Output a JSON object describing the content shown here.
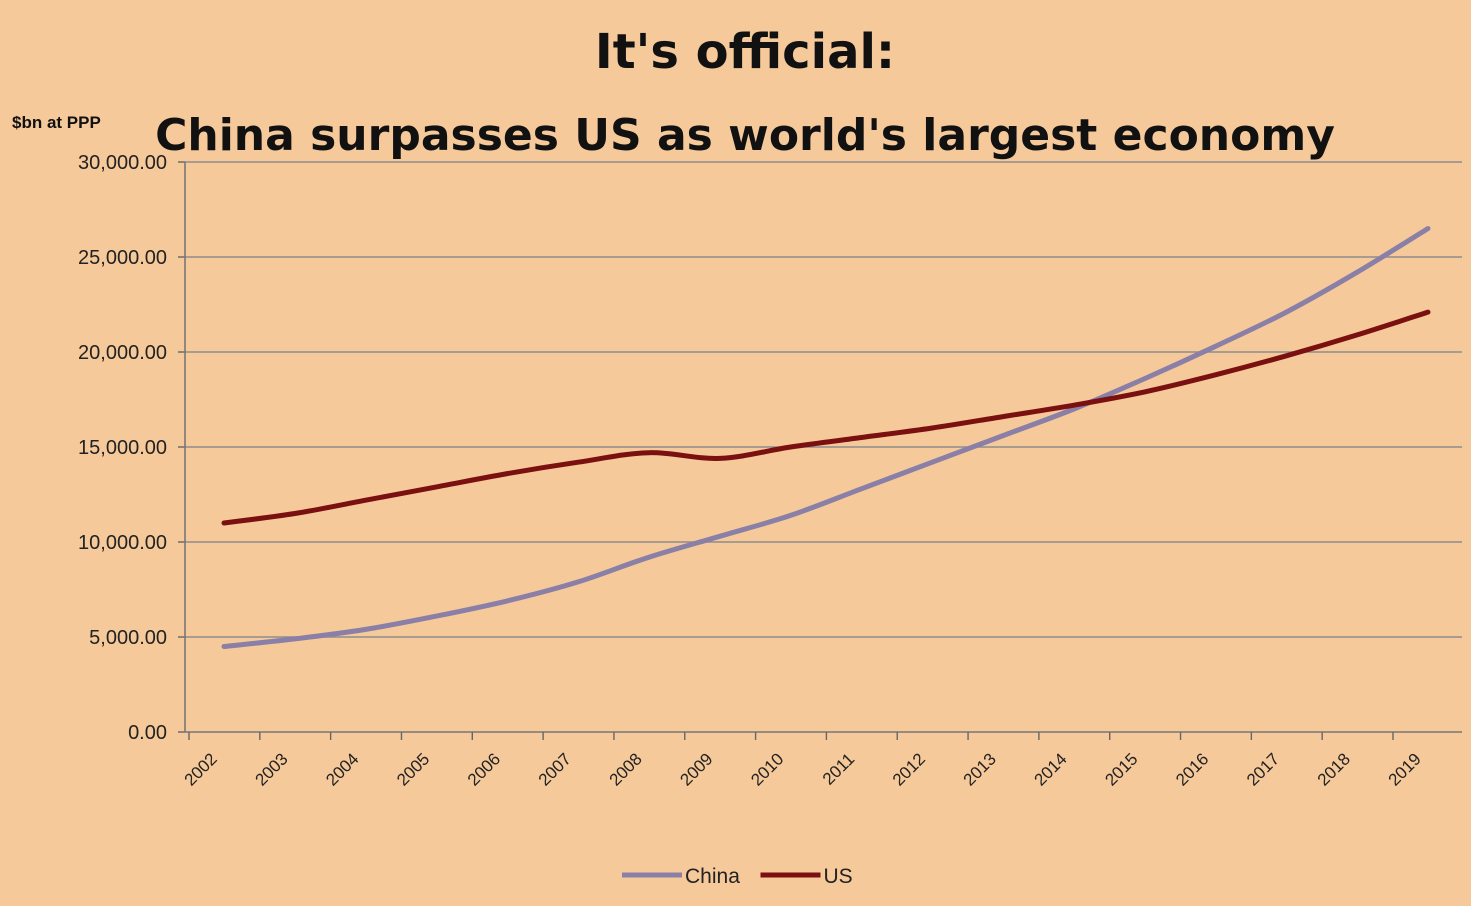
{
  "chart_data": {
    "type": "line",
    "title": "It's official:",
    "subtitle": "China surpasses US as world's largest economy",
    "ylabel": "$bn at PPP",
    "xlabel": "",
    "ylim": [
      0,
      30000
    ],
    "yticks": [
      "0.00",
      "5,000.00",
      "10,000.00",
      "15,000.00",
      "20,000.00",
      "25,000.00",
      "30,000.00"
    ],
    "x": [
      "2002",
      "2003",
      "2004",
      "2005",
      "2006",
      "2007",
      "2008",
      "2009",
      "2010",
      "2011",
      "2012",
      "2013",
      "2014",
      "2015",
      "2016",
      "2017",
      "2018",
      "2019"
    ],
    "series": [
      {
        "name": "China",
        "color": "#8a7fa6",
        "values": [
          4500,
          4900,
          5400,
          6100,
          6900,
          7900,
          9200,
          10300,
          11400,
          12800,
          14200,
          15600,
          17000,
          18600,
          20300,
          22100,
          24200,
          26500
        ]
      },
      {
        "name": "US",
        "color": "#7a1010",
        "values": [
          11000,
          11500,
          12200,
          12900,
          13600,
          14200,
          14700,
          14400,
          15000,
          15500,
          16000,
          16600,
          17200,
          17900,
          18800,
          19800,
          20900,
          22100
        ]
      }
    ],
    "grid": true,
    "legend_position": "bottom"
  }
}
